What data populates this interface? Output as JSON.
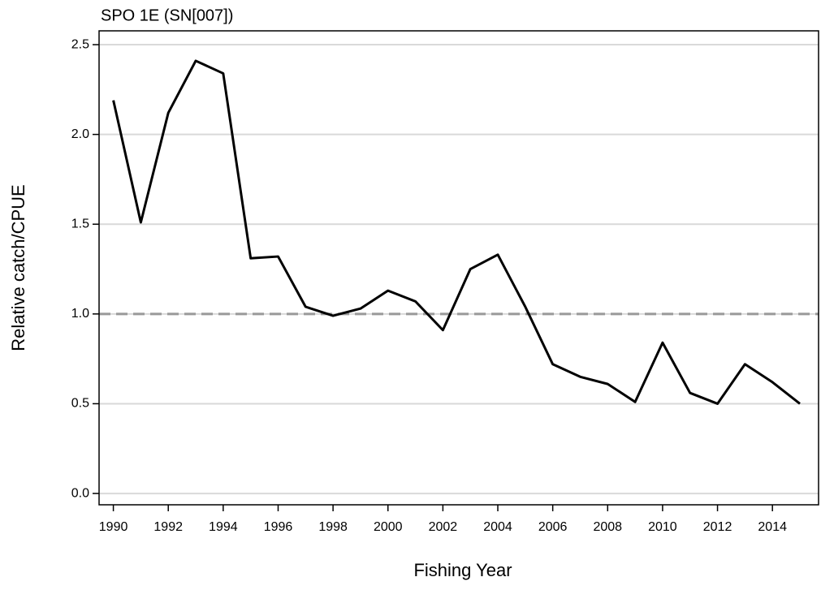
{
  "chart_data": {
    "type": "line",
    "title": "SPO 1E (SN[007])",
    "x_label": "Fishing Year",
    "y_label": "Relative catch/CPUE",
    "x": [
      1990,
      1991,
      1992,
      1993,
      1994,
      1995,
      1996,
      1997,
      1998,
      1999,
      2000,
      2001,
      2002,
      2003,
      2004,
      2005,
      2006,
      2007,
      2008,
      2009,
      2010,
      2011,
      2012,
      2013,
      2014,
      2015
    ],
    "series": [
      {
        "color": "#000000",
        "values": [
          2.19,
          1.51,
          2.12,
          2.41,
          2.34,
          1.31,
          1.32,
          1.04,
          0.99,
          1.03,
          1.13,
          1.07,
          0.91,
          1.25,
          1.33,
          1.04,
          0.72,
          0.65,
          0.61,
          0.51,
          0.84,
          0.56,
          0.5,
          0.72,
          0.62,
          0.5
        ]
      }
    ],
    "xlim": [
      1989.48,
      2015.68
    ],
    "ylim": [
      -0.063,
      2.577
    ],
    "xticks": [
      1990,
      1992,
      1994,
      1996,
      1998,
      2000,
      2002,
      2004,
      2006,
      2008,
      2010,
      2012,
      2014
    ],
    "yticks": [
      {
        "value": 0,
        "label": "0.0"
      },
      0.5,
      {
        "value": 1,
        "label": "1.0"
      },
      1.5,
      {
        "value": 2,
        "label": "2.0"
      },
      2.5
    ],
    "grid": true,
    "grid_color": "#d9d9d9",
    "reference_line": {
      "value": 1,
      "color": "#999999",
      "style": "dashed"
    }
  }
}
